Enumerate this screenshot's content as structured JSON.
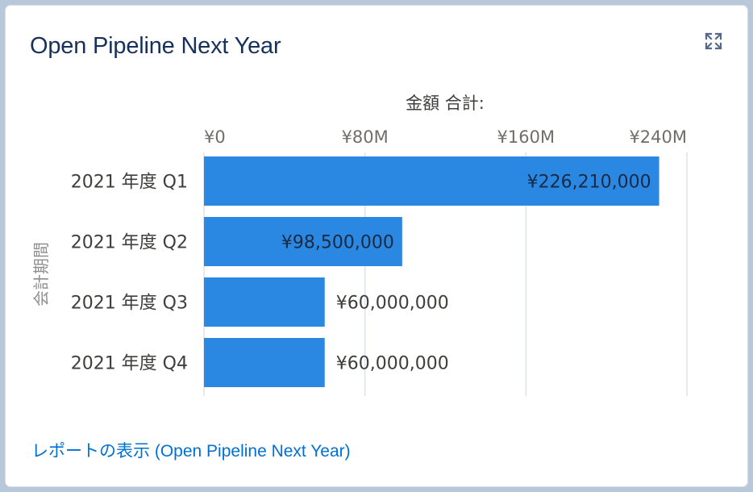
{
  "card": {
    "title": "Open Pipeline Next Year",
    "expand_icon": "expand-icon",
    "report_link": "レポートの表示 (Open Pipeline Next Year)"
  },
  "colors": {
    "bar": "#2b88e2",
    "grid": "#dde3ec",
    "title": "#16325c",
    "link": "#0070d2",
    "text": "#3e3e3c"
  },
  "chart_data": {
    "type": "bar",
    "orientation": "horizontal",
    "title": "",
    "xlabel": "金額 合計:",
    "ylabel": "会計期間",
    "categories": [
      "2021 年度 Q1",
      "2021 年度 Q2",
      "2021 年度 Q3",
      "2021 年度 Q4"
    ],
    "values": [
      226210000,
      98500000,
      60000000,
      60000000
    ],
    "value_labels": [
      "¥226,210,000",
      "¥98,500,000",
      "¥60,000,000",
      "¥60,000,000"
    ],
    "xlim": [
      0,
      240000000
    ],
    "x_ticks": [
      0,
      80000000,
      160000000,
      240000000
    ],
    "x_tick_labels": [
      "¥0",
      "¥80M",
      "¥160M",
      "¥240M"
    ],
    "x_axis_position": "top",
    "grid": true,
    "legend": "none"
  }
}
